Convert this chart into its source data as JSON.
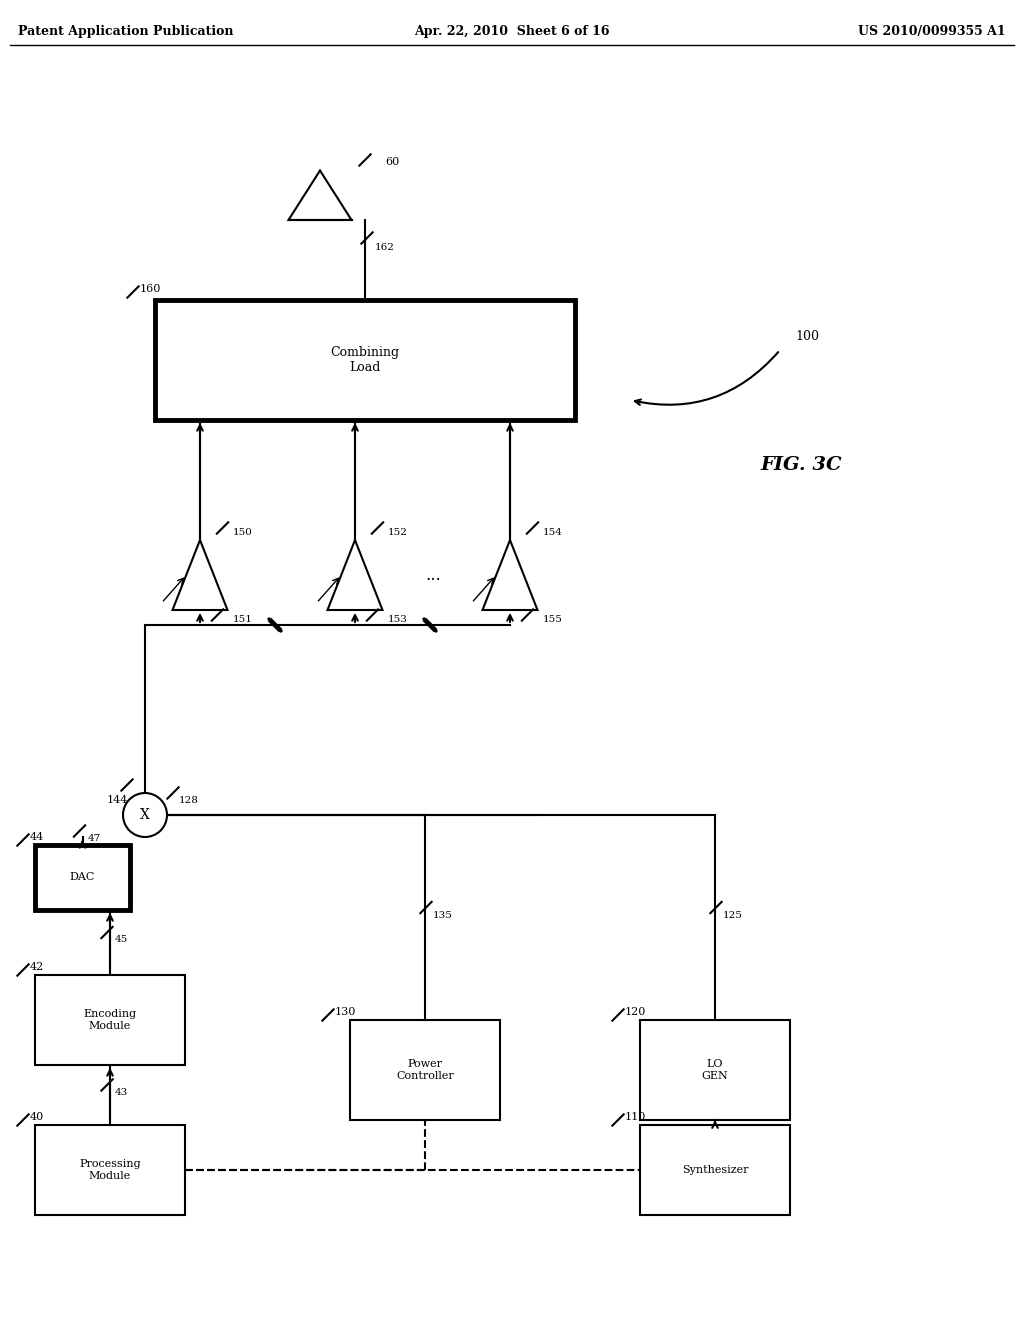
{
  "title": "FIG. 3C",
  "header_left": "Patent Application Publication",
  "header_center": "Apr. 22, 2010  Sheet 6 of 16",
  "header_right": "US 2010/0099355 A1",
  "bg_color": "#ffffff",
  "line_color": "#000000",
  "label_100": "100",
  "label_figname": "FIG. 3C"
}
